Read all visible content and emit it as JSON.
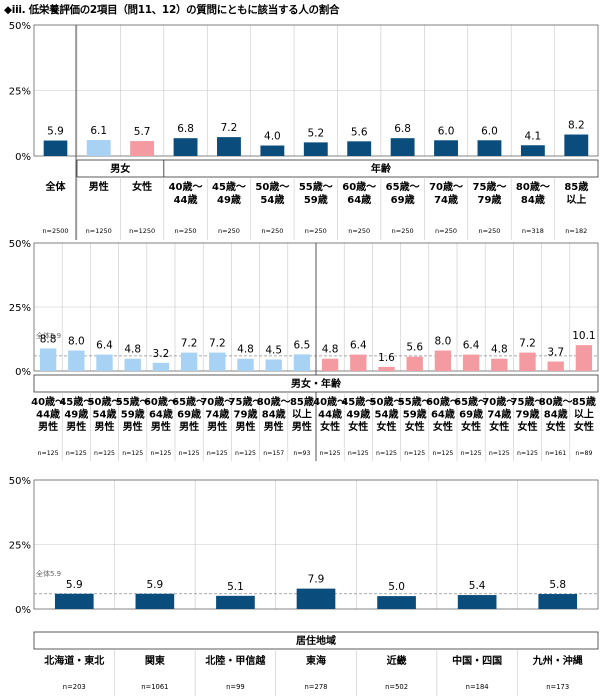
{
  "title": "◆iii. 低栄養評価の2項目（問11、12）の質問にともに該当する人の割合",
  "colors": {
    "navy": "#0a4d7c",
    "male": "#a8d2f4",
    "female": "#f49ba1",
    "grid": "#c8c8c8",
    "ref": "#8c8c8c"
  },
  "chart_data": [
    {
      "type": "bar",
      "ylim": [
        0,
        50
      ],
      "yticks": [
        "50%",
        "25%",
        "0%"
      ],
      "groups": [
        {
          "label": "",
          "start": 0,
          "end": 0
        },
        {
          "label": "男女",
          "start": 1,
          "end": 2
        },
        {
          "label": "年齢",
          "start": 3,
          "end": 12
        }
      ],
      "categories": [
        {
          "label": "全体",
          "n": "n=2500",
          "value": 5.9,
          "value_label": "5.9",
          "color": "navy"
        },
        {
          "label": "男性",
          "n": "n=1250",
          "value": 6.1,
          "value_label": "6.1",
          "color": "male"
        },
        {
          "label": "女性",
          "n": "n=1250",
          "value": 5.7,
          "value_label": "5.7",
          "color": "female"
        },
        {
          "label": "40歳～44歳",
          "n": "n=250",
          "value": 6.8,
          "value_label": "6.8",
          "color": "navy"
        },
        {
          "label": "45歳～49歳",
          "n": "n=250",
          "value": 7.2,
          "value_label": "7.2",
          "color": "navy"
        },
        {
          "label": "50歳～54歳",
          "n": "n=250",
          "value": 4.0,
          "value_label": "4.0",
          "color": "navy"
        },
        {
          "label": "55歳～59歳",
          "n": "n=250",
          "value": 5.2,
          "value_label": "5.2",
          "color": "navy"
        },
        {
          "label": "60歳～64歳",
          "n": "n=250",
          "value": 5.6,
          "value_label": "5.6",
          "color": "navy"
        },
        {
          "label": "65歳～69歳",
          "n": "n=250",
          "value": 6.8,
          "value_label": "6.8",
          "color": "navy"
        },
        {
          "label": "70歳～74歳",
          "n": "n=250",
          "value": 6.0,
          "value_label": "6.0",
          "color": "navy"
        },
        {
          "label": "75歳～79歳",
          "n": "n=250",
          "value": 6.0,
          "value_label": "6.0",
          "color": "navy"
        },
        {
          "label": "80歳～84歳",
          "n": "n=318",
          "value": 4.1,
          "value_label": "4.1",
          "color": "navy"
        },
        {
          "label": "85歳以上",
          "n": "n=182",
          "value": 8.2,
          "value_label": "8.2",
          "color": "navy"
        }
      ]
    },
    {
      "type": "bar",
      "ylim": [
        0,
        50
      ],
      "yticks": [
        "50%",
        "25%",
        "0%"
      ],
      "reference": {
        "label": "全体5.9",
        "value": 5.9
      },
      "groups": [
        {
          "label": "男女・年齢",
          "start": 0,
          "end": 19
        }
      ],
      "categories": [
        {
          "label": "40歳～44歳男性",
          "n": "n=125",
          "value": 8.8,
          "value_label": "8.8",
          "color": "male"
        },
        {
          "label": "45歳～49歳男性",
          "n": "n=125",
          "value": 8.0,
          "value_label": "8.0",
          "color": "male"
        },
        {
          "label": "50歳～54歳男性",
          "n": "n=125",
          "value": 6.4,
          "value_label": "6.4",
          "color": "male"
        },
        {
          "label": "55歳～59歳男性",
          "n": "n=125",
          "value": 4.8,
          "value_label": "4.8",
          "color": "male"
        },
        {
          "label": "60歳～64歳男性",
          "n": "n=125",
          "value": 3.2,
          "value_label": "3.2",
          "color": "male"
        },
        {
          "label": "65歳～69歳男性",
          "n": "n=125",
          "value": 7.2,
          "value_label": "7.2",
          "color": "male"
        },
        {
          "label": "70歳～74歳男性",
          "n": "n=125",
          "value": 7.2,
          "value_label": "7.2",
          "color": "male"
        },
        {
          "label": "75歳～79歳男性",
          "n": "n=125",
          "value": 4.8,
          "value_label": "4.8",
          "color": "male"
        },
        {
          "label": "80歳～84歳男性",
          "n": "n=157",
          "value": 4.5,
          "value_label": "4.5",
          "color": "male"
        },
        {
          "label": "85歳以上男性",
          "n": "n=93",
          "value": 6.5,
          "value_label": "6.5",
          "color": "male"
        },
        {
          "label": "40歳～44歳女性",
          "n": "n=125",
          "value": 4.8,
          "value_label": "4.8",
          "color": "female"
        },
        {
          "label": "45歳～49歳女性",
          "n": "n=125",
          "value": 6.4,
          "value_label": "6.4",
          "color": "female"
        },
        {
          "label": "50歳～54歳女性",
          "n": "n=125",
          "value": 1.6,
          "value_label": "1.6",
          "color": "female"
        },
        {
          "label": "55歳～59歳女性",
          "n": "n=125",
          "value": 5.6,
          "value_label": "5.6",
          "color": "female"
        },
        {
          "label": "60歳～64歳女性",
          "n": "n=125",
          "value": 8.0,
          "value_label": "8.0",
          "color": "female"
        },
        {
          "label": "65歳～69歳女性",
          "n": "n=125",
          "value": 6.4,
          "value_label": "6.4",
          "color": "female"
        },
        {
          "label": "70歳～74歳女性",
          "n": "n=125",
          "value": 4.8,
          "value_label": "4.8",
          "color": "female"
        },
        {
          "label": "75歳～79歳女性",
          "n": "n=125",
          "value": 7.2,
          "value_label": "7.2",
          "color": "female"
        },
        {
          "label": "80歳～84歳女性",
          "n": "n=161",
          "value": 3.7,
          "value_label": "3.7",
          "color": "female"
        },
        {
          "label": "85歳以上女性",
          "n": "n=89",
          "value": 10.1,
          "value_label": "10.1",
          "color": "female"
        }
      ]
    },
    {
      "type": "bar",
      "ylim": [
        0,
        50
      ],
      "yticks": [
        "50%",
        "25%",
        "0%"
      ],
      "reference": {
        "label": "全体5.9",
        "value": 5.9
      },
      "groups": [
        {
          "label": "居住地域",
          "start": 0,
          "end": 6
        }
      ],
      "categories": [
        {
          "label": "北海道・東北",
          "n": "n=203",
          "value": 5.9,
          "value_label": "5.9",
          "color": "navy"
        },
        {
          "label": "関東",
          "n": "n=1061",
          "value": 5.9,
          "value_label": "5.9",
          "color": "navy"
        },
        {
          "label": "北陸・甲信越",
          "n": "n=99",
          "value": 5.1,
          "value_label": "5.1",
          "color": "navy"
        },
        {
          "label": "東海",
          "n": "n=278",
          "value": 7.9,
          "value_label": "7.9",
          "color": "navy"
        },
        {
          "label": "近畿",
          "n": "n=502",
          "value": 5.0,
          "value_label": "5.0",
          "color": "navy"
        },
        {
          "label": "中国・四国",
          "n": "n=184",
          "value": 5.4,
          "value_label": "5.4",
          "color": "navy"
        },
        {
          "label": "九州・沖縄",
          "n": "n=173",
          "value": 5.8,
          "value_label": "5.8",
          "color": "navy"
        }
      ]
    }
  ]
}
